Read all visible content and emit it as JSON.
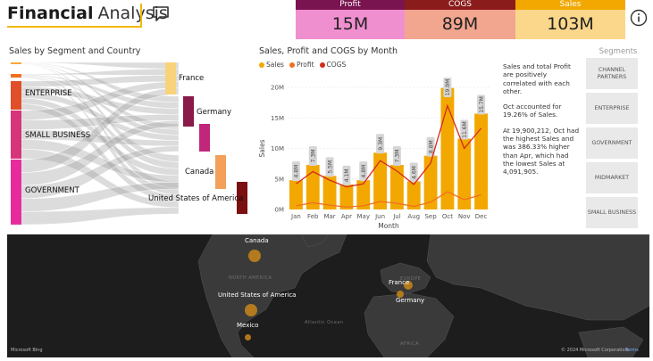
{
  "header": {
    "title_bold": "Financial",
    "title_light": "Analysis"
  },
  "kpis": [
    {
      "label": "Profit",
      "value": "15M",
      "head_color": "#7a1450",
      "body_color": "#f08fd0"
    },
    {
      "label": "COGS",
      "value": "89M",
      "head_color": "#8a1c1c",
      "body_color": "#f2a58f"
    },
    {
      "label": "Sales",
      "value": "103M",
      "head_color": "#f2a800",
      "body_color": "#fad78a"
    }
  ],
  "sankey": {
    "title": "Sales by Segment and Country",
    "segments": [
      {
        "label": "",
        "color": "#f7a93b"
      },
      {
        "label": "",
        "color": "#f07022"
      },
      {
        "label": "ENTERPRISE",
        "color": "#e04e2a"
      },
      {
        "label": "SMALL BUSINESS",
        "color": "#d6357a"
      },
      {
        "label": "GOVERNMENT",
        "color": "#e82b9c"
      }
    ],
    "countries": [
      {
        "label": "France",
        "color": "#f9d37c"
      },
      {
        "label": "Germany",
        "color": "#8a1a4a"
      },
      {
        "label": "",
        "color": "#c0267a"
      },
      {
        "label": "Canada",
        "color": "#f2a05a"
      },
      {
        "label": "United States of America",
        "color": "#7a1010"
      }
    ]
  },
  "chart": {
    "title": "Sales, Profit and COGS by Month",
    "legend": [
      {
        "label": "Sales",
        "color": "#f2a800"
      },
      {
        "label": "Profit",
        "color": "#f07022"
      },
      {
        "label": "COGS",
        "color": "#d62a1a"
      }
    ],
    "xlabel": "Month",
    "ylabel": "Sales"
  },
  "chart_data": {
    "type": "bar",
    "title": "Sales, Profit and COGS by Month",
    "xlabel": "Month",
    "ylabel": "Sales",
    "ylim": [
      0,
      20000000
    ],
    "yticks": [
      "0M",
      "5M",
      "10M",
      "15M",
      "20M"
    ],
    "categories": [
      "Jan",
      "Feb",
      "Mar",
      "Apr",
      "May",
      "Jun",
      "Jul",
      "Aug",
      "Sep",
      "Oct",
      "Nov",
      "Dec"
    ],
    "series": [
      {
        "name": "Sales",
        "values": [
          4.8,
          7.3,
          5.5,
          4.1,
          4.8,
          9.3,
          7.3,
          4.6,
          8.8,
          19.9,
          11.6,
          15.7
        ],
        "labels": [
          "4.8M",
          "7.3M",
          "5.5M",
          "4.1M",
          "4.8M",
          "9.3M",
          "7.3M",
          "4.6M",
          "8.8M",
          "19.9M",
          "11.6M",
          "15.7M"
        ]
      },
      {
        "name": "Profit",
        "values": [
          0.6,
          1.1,
          0.7,
          0.4,
          0.6,
          1.3,
          1.0,
          0.5,
          1.2,
          2.9,
          1.6,
          2.4
        ]
      },
      {
        "name": "COGS",
        "values": [
          4.2,
          6.2,
          4.8,
          3.7,
          4.2,
          8.0,
          6.3,
          4.1,
          7.6,
          17.0,
          10.0,
          13.3
        ]
      }
    ],
    "grid": true,
    "legend_position": "top-left"
  },
  "narrative": [
    "Sales and total Profit are positively correlated with each other.",
    "Oct accounted for 19.26% of Sales.",
    "At 19,900,212, Oct had the highest Sales and was 386.33% higher than Apr, which had the lowest Sales at 4,091,905."
  ],
  "segments_slicer": {
    "title": "Segments",
    "items": [
      "CHANNEL PARTNERS",
      "ENTERPRISE",
      "GOVERNMENT",
      "MIDMARKET",
      "SMALL BUSINESS"
    ]
  },
  "map": {
    "countries": [
      "Canada",
      "United States of America",
      "Mexico",
      "France",
      "Germany"
    ],
    "faint_labels": [
      "NORTH AMERICA",
      "EUROPE",
      "Atlantic Ocean",
      "AFRICA"
    ],
    "credit_left": "Microsoft Bing",
    "credit_right": "© 2024 Microsoft Corporation",
    "terms": "Terms"
  },
  "icons": {
    "comment": "comment-icon",
    "info": "info-icon"
  }
}
